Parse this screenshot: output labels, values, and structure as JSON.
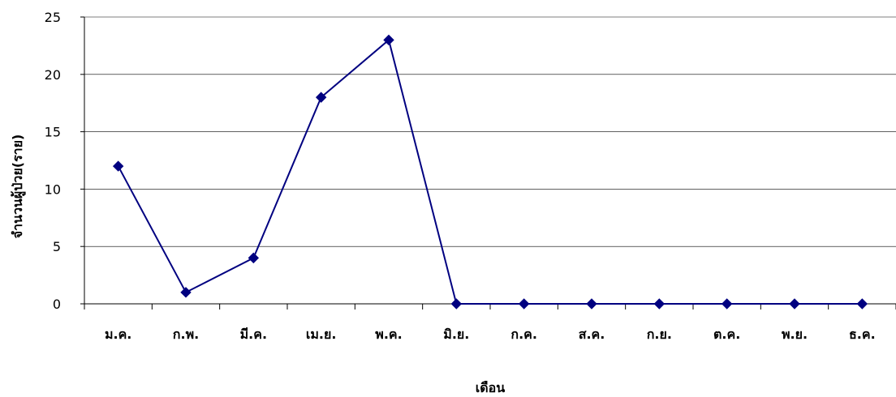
{
  "chart_data": {
    "type": "line",
    "title": "",
    "xlabel": "เดือน",
    "ylabel": "จำนวนผู้ป่วย(ราย)",
    "categories": [
      "ม.ค.",
      "ก.พ.",
      "มี.ค.",
      "เม.ย.",
      "พ.ค.",
      "มิ.ย.",
      "ก.ค.",
      "ส.ค.",
      "ก.ย.",
      "ต.ค.",
      "พ.ย.",
      "ธ.ค."
    ],
    "series": [
      {
        "values": [
          12,
          1,
          4,
          18,
          23,
          0,
          0,
          0,
          0,
          0,
          0,
          0
        ]
      }
    ],
    "ylim": [
      0,
      25
    ],
    "yticks": [
      0,
      5,
      10,
      15,
      20,
      25
    ],
    "grid": true,
    "legend": "none",
    "colors": {
      "line": "#000080",
      "marker": "#000080",
      "grid": "#000000"
    }
  }
}
